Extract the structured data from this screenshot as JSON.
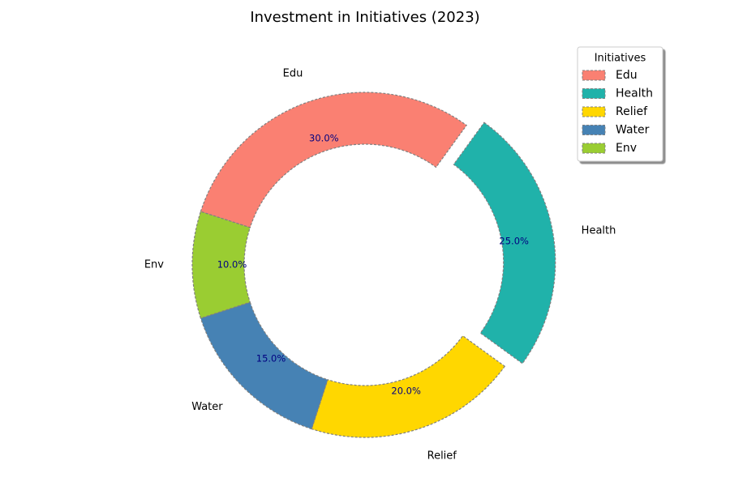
{
  "chart_data": {
    "type": "pie",
    "variant": "donut",
    "title": "Investment in Initiatives (2023)",
    "categories": [
      "Edu",
      "Health",
      "Relief",
      "Water",
      "Env"
    ],
    "values": [
      30,
      25,
      20,
      15,
      10
    ],
    "percent_labels": [
      "30.0%",
      "25.0%",
      "20.0%",
      "15.0%",
      "10.0%"
    ],
    "colors": [
      "#fa8072",
      "#20b2aa",
      "#ffd700",
      "#4682b4",
      "#9acd32"
    ],
    "exploded": [
      "Health"
    ],
    "edge_color": "#808080",
    "edge_style": "dashed",
    "percent_label_color": "#000080",
    "legend": {
      "title": "Initiatives",
      "entries": [
        "Edu",
        "Health",
        "Relief",
        "Water",
        "Env"
      ],
      "placement": "top-right"
    }
  }
}
